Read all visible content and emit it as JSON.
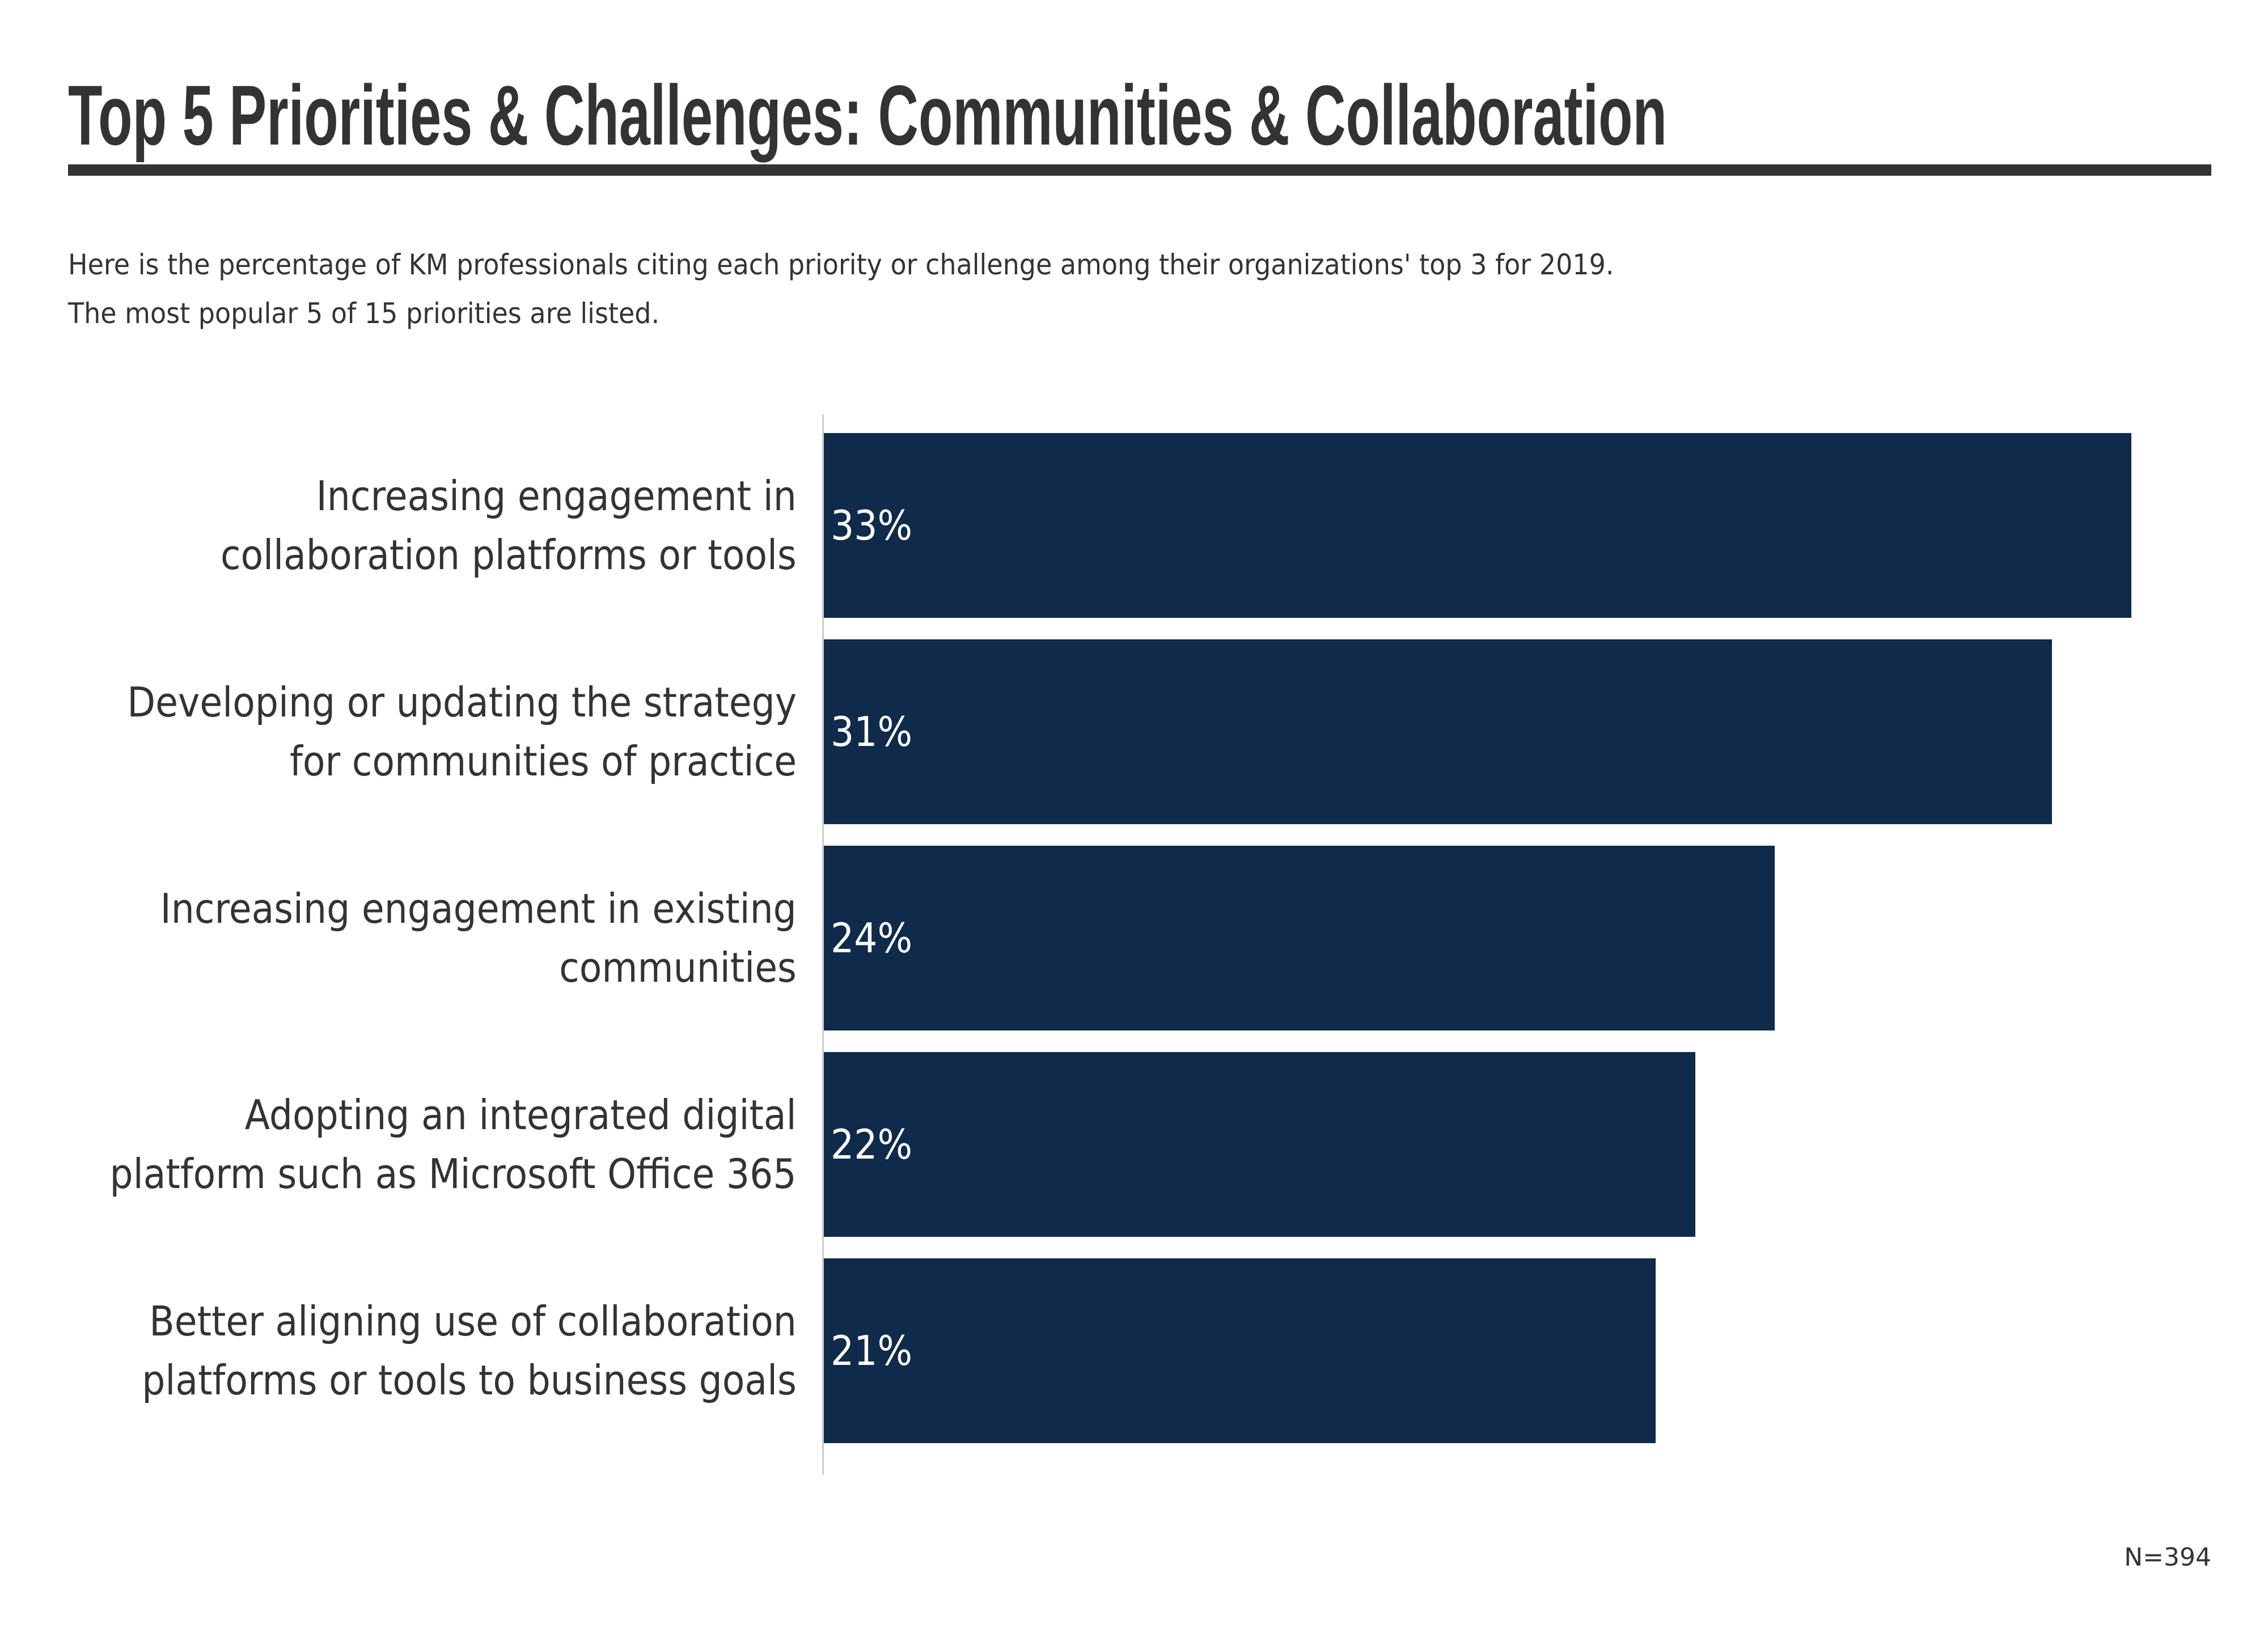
{
  "title": "Top 5 Priorities & Challenges: Communities & Collaboration",
  "subtitle": [
    "Here is the percentage of KM professionals citing each priority or challenge among their organizations' top 3 for 2019.",
    "The most popular 5 of 15 priorities are listed."
  ],
  "note": "N=394",
  "colors": {
    "bar": "#0f2a4a",
    "text": "#333333",
    "axis": "#cccccc"
  },
  "chart_data": {
    "type": "bar",
    "orientation": "horizontal",
    "categories": [
      [
        "Increasing engagement in",
        "collaboration platforms or tools"
      ],
      [
        "Developing or updating the strategy",
        "for communities of practice"
      ],
      [
        "Increasing engagement in existing",
        "communities"
      ],
      [
        "Adopting an integrated digital",
        "platform such as Microsoft Office 365"
      ],
      [
        "Better aligning use of collaboration",
        "platforms or tools to business goals"
      ]
    ],
    "values": [
      33,
      31,
      24,
      22,
      21
    ],
    "data_labels": [
      "33%",
      "31%",
      "24%",
      "22%",
      "21%"
    ],
    "unit": "%",
    "xlim": [
      0,
      33
    ],
    "grid": false
  }
}
